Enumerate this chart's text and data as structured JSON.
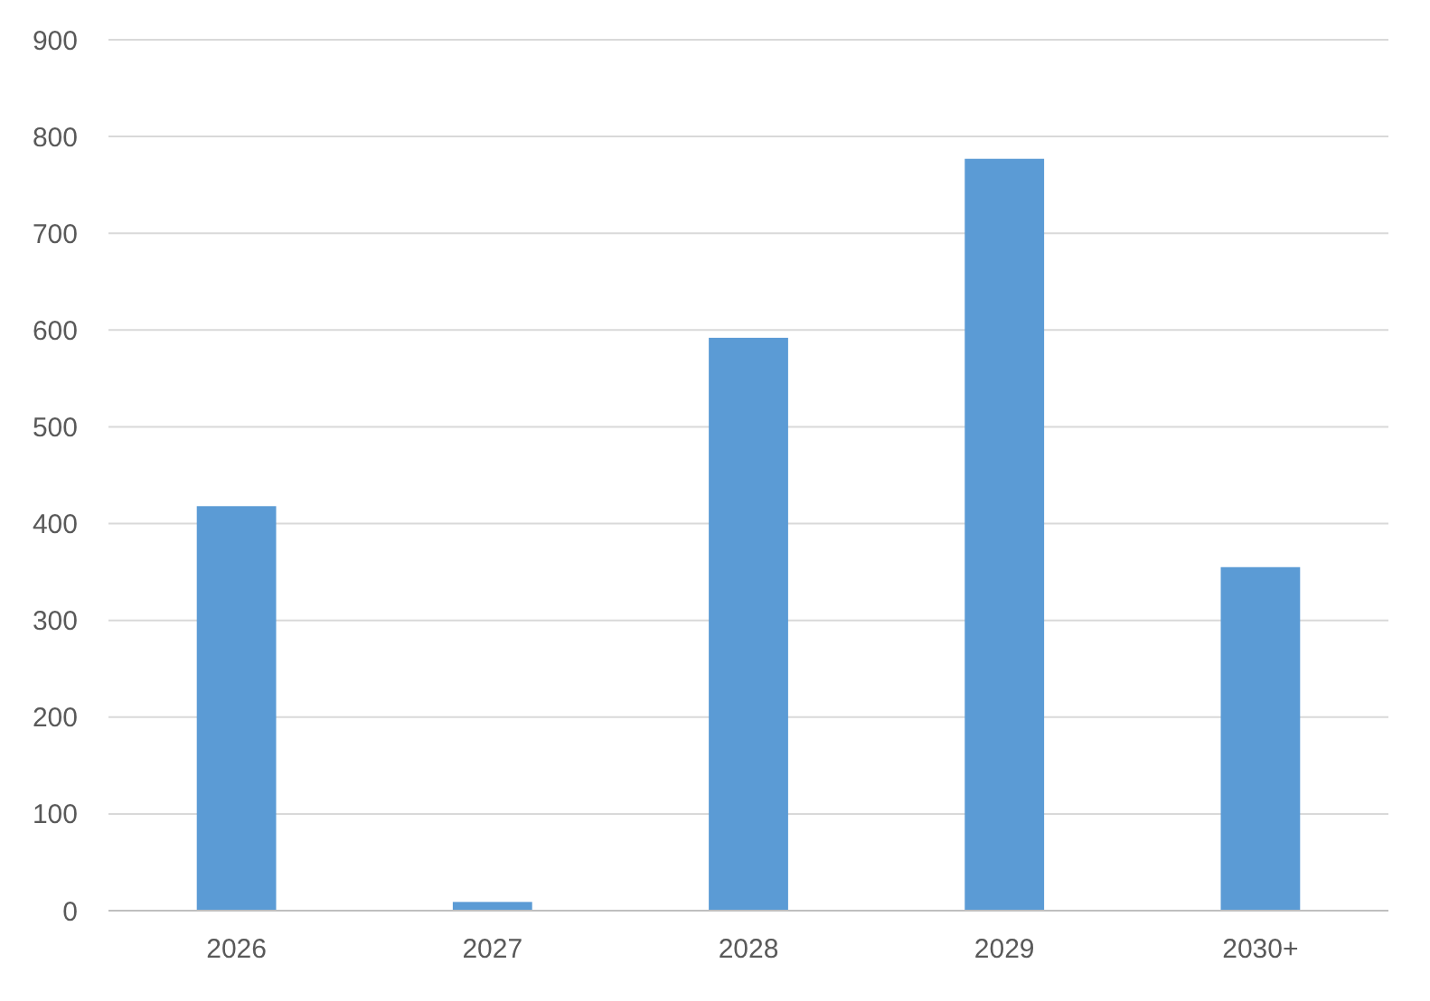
{
  "chart_data": {
    "type": "bar",
    "categories": [
      "2026",
      "2027",
      "2028",
      "2029",
      "2030+"
    ],
    "values": [
      418,
      9,
      592,
      777,
      355
    ],
    "color": "#5b9bd5",
    "ylim": [
      0,
      900
    ],
    "yticks": [
      0,
      100,
      200,
      300,
      400,
      500,
      600,
      700,
      800,
      900
    ],
    "grid": "y"
  }
}
